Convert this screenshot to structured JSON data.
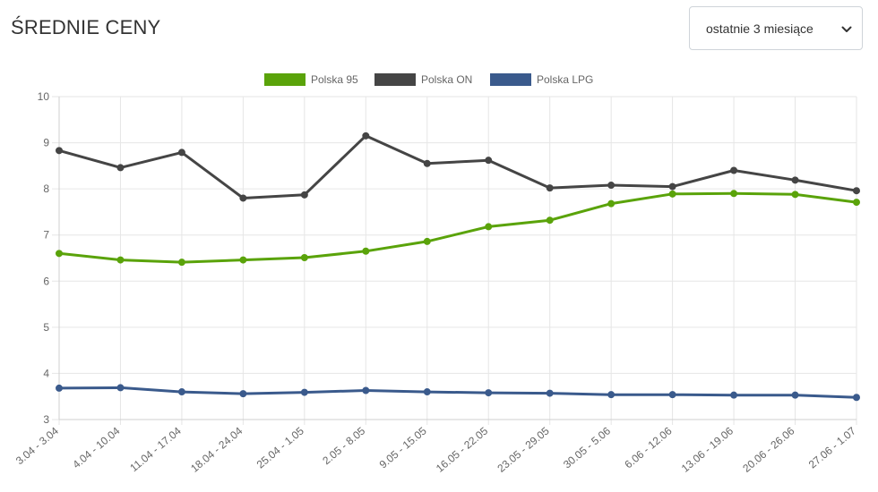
{
  "header": {
    "title": "ŚREDNIE CENY",
    "period_select": {
      "value": "ostatnie 3 miesiące",
      "icon": "chevron-down-icon"
    }
  },
  "chart_data": {
    "type": "line",
    "x": [
      "3.04 - 3.04",
      "4.04 - 10.04",
      "11.04 - 17.04",
      "18.04 - 24.04",
      "25.04 - 1.05",
      "2.05 - 8.05",
      "9.05 - 15.05",
      "16.05 - 22.05",
      "23.05 - 29.05",
      "30.05 - 5.06",
      "6.06 - 12.06",
      "13.06 - 19.06",
      "20.06 - 26.06",
      "27.06 - 1.07"
    ],
    "series": [
      {
        "name": "Polska 95",
        "color": "#5aa30a",
        "values": [
          6.6,
          6.46,
          6.41,
          6.46,
          6.51,
          6.65,
          6.86,
          7.18,
          7.32,
          7.68,
          7.89,
          7.9,
          7.88,
          7.71
        ]
      },
      {
        "name": "Polska ON",
        "color": "#454545",
        "values": [
          8.83,
          8.46,
          8.79,
          7.8,
          7.87,
          9.15,
          8.55,
          8.62,
          8.02,
          8.08,
          8.05,
          8.4,
          8.19,
          7.96
        ]
      },
      {
        "name": "Polska LPG",
        "color": "#3a5a8c",
        "values": [
          3.68,
          3.69,
          3.6,
          3.56,
          3.59,
          3.63,
          3.6,
          3.58,
          3.57,
          3.54,
          3.54,
          3.53,
          3.53,
          3.48
        ]
      }
    ],
    "y_ticks": [
      "3",
      "4",
      "5",
      "6",
      "7",
      "8",
      "9",
      "10"
    ],
    "ylim": [
      3,
      10
    ],
    "grid": true,
    "legend_position": "top-center"
  }
}
